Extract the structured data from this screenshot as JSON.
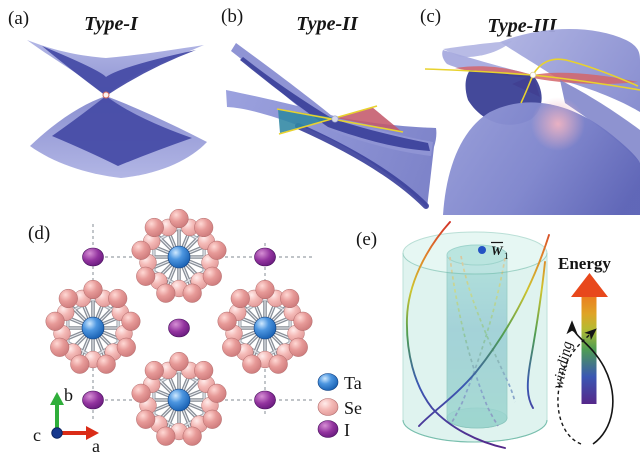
{
  "panels": {
    "a": {
      "label": "(a)",
      "title": "Type-I"
    },
    "b": {
      "label": "(b)",
      "title": "Type-II"
    },
    "c": {
      "label": "(c)",
      "title": "Type-III"
    },
    "d": {
      "label": "(d)"
    },
    "e": {
      "label": "(e)"
    }
  },
  "crystal": {
    "legend": [
      {
        "name": "Ta",
        "color": "#2a6fc8"
      },
      {
        "name": "Se",
        "color": "#e89a9a"
      },
      {
        "name": "I",
        "color": "#7b2a8c"
      }
    ],
    "axis_labels": {
      "a": "a",
      "b": "b",
      "c": "c"
    }
  },
  "energy_diagram": {
    "weyl_point": {
      "symbol": "W",
      "subscript": "1"
    },
    "energy_label": "Energy",
    "winding_label": "winding"
  },
  "colors": {
    "surface_light": "#a3a7dd",
    "surface_mid": "#8187cd",
    "surface_dark": "#3d429c",
    "teal_patch": "#2f86a3",
    "red_patch": "#c4596b",
    "yellow_line": "#e8d22e",
    "cylinder_outer": "#c6ebe3",
    "cylinder_inner": "#6fc2bd",
    "axis_a_red": "#da2c17",
    "axis_b_green": "#2fae3a",
    "axis_c_blue": "#16388e",
    "energy_arrow_top": "#e8481c",
    "energy_arrow_bottom": "#55288a"
  }
}
